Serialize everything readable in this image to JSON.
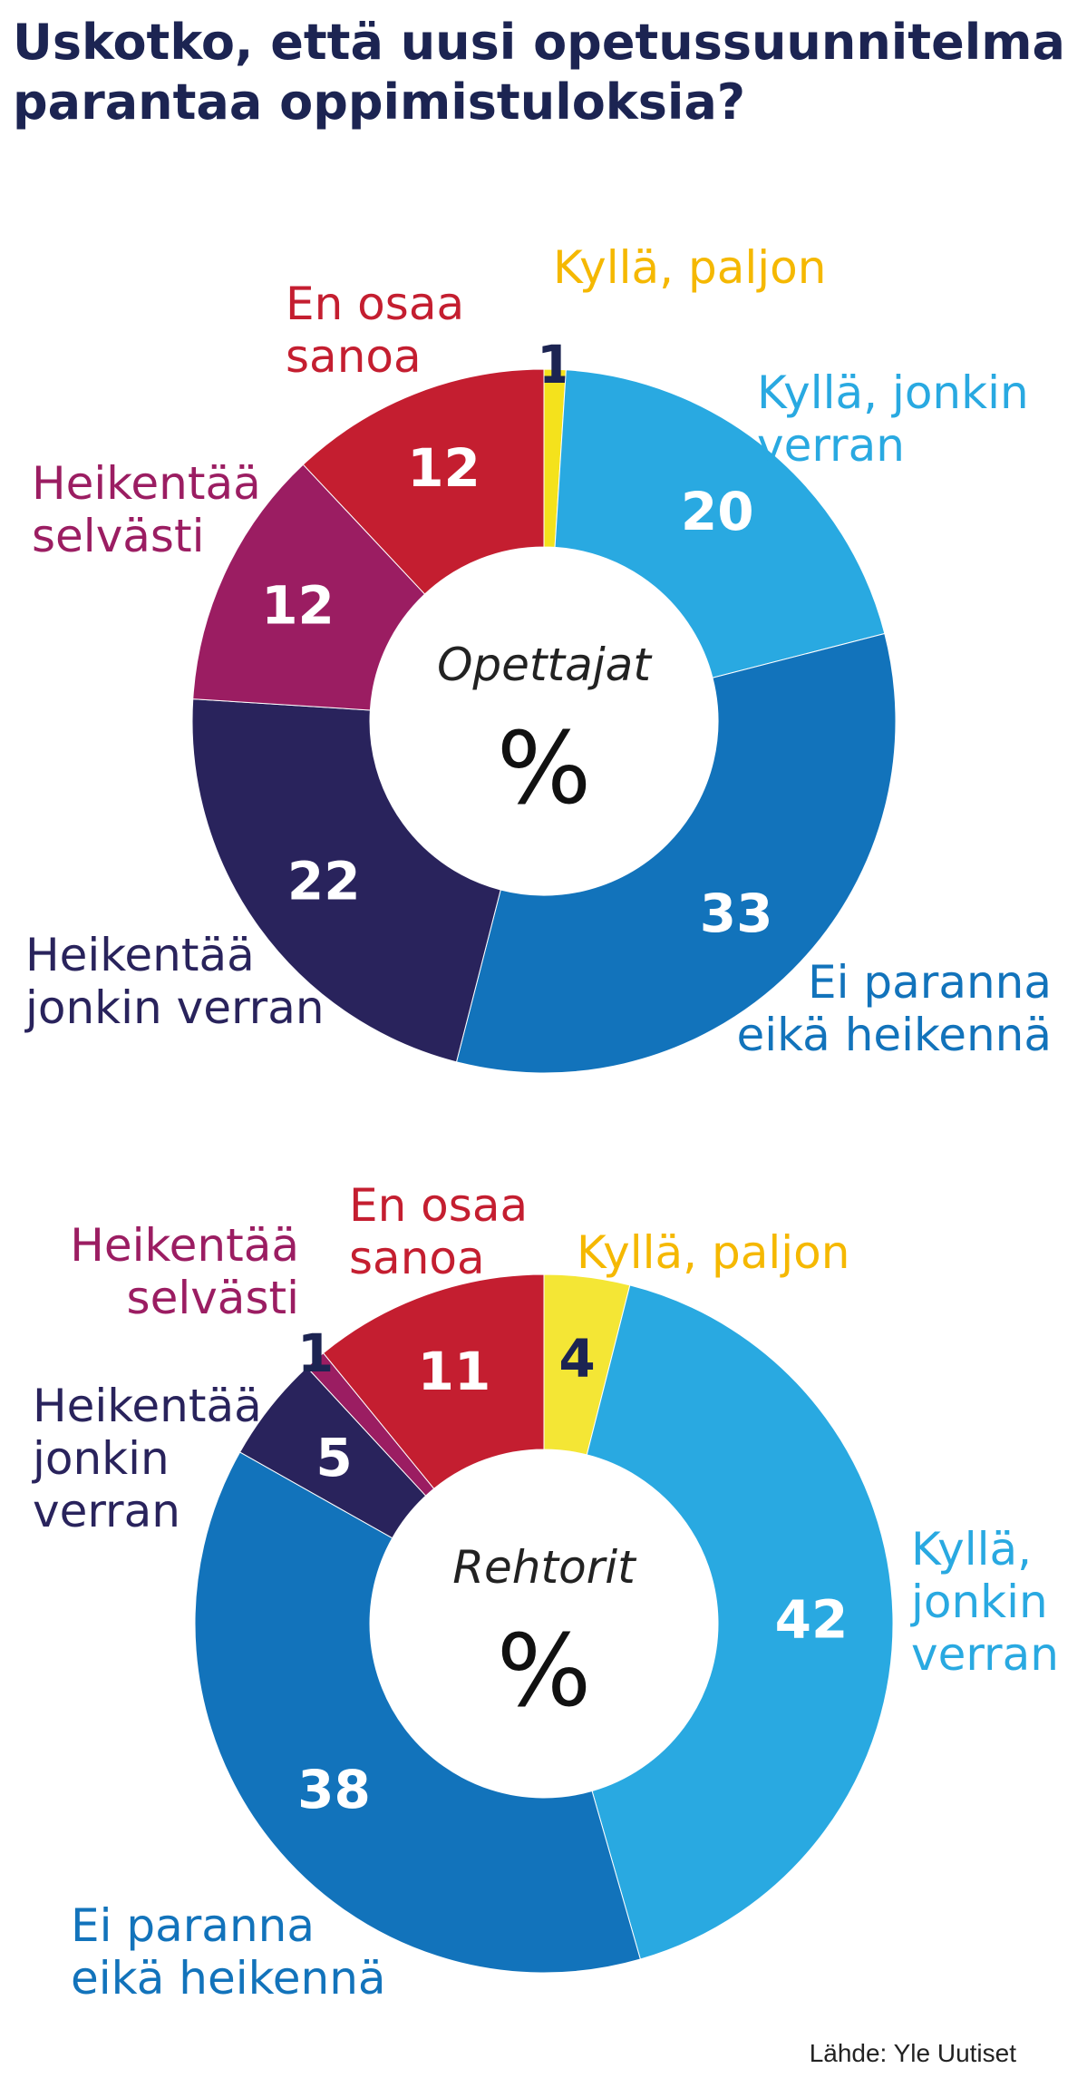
{
  "title_lines": [
    "Uskotko, että uusi opetussuunnitelma",
    "parantaa oppimistuloksia?"
  ],
  "source": "Lähde: Yle Uutiset",
  "chart_data": [
    {
      "type": "pie",
      "center_title": "Opettajat",
      "unit": "%",
      "slices": [
        {
          "label": "Kyllä, paljon",
          "value": 1,
          "color": "#f4e21c",
          "label_color": "#f5b800",
          "value_color": "#1c2452"
        },
        {
          "label": "Kyllä, jonkin verran",
          "value": 20,
          "color": "#29a9e1",
          "label_color": "#29a9e1",
          "value_color": "#ffffff"
        },
        {
          "label": "Ei paranna eikä heikennä",
          "value": 33,
          "color": "#1273bb",
          "label_color": "#1273bb",
          "value_color": "#ffffff"
        },
        {
          "label": "Heikentää jonkin verran",
          "value": 22,
          "color": "#29235c",
          "label_color": "#29235c",
          "value_color": "#ffffff"
        },
        {
          "label": "Heikentää selvästi",
          "value": 12,
          "color": "#9b1d62",
          "label_color": "#9b1d62",
          "value_color": "#ffffff"
        },
        {
          "label": "En osaa sanoa",
          "value": 12,
          "color": "#c41e30",
          "label_color": "#c41e30",
          "value_color": "#ffffff"
        }
      ]
    },
    {
      "type": "pie",
      "center_title": "Rehtorit",
      "unit": "%",
      "slices": [
        {
          "label": "Kyllä, paljon",
          "value": 4,
          "color": "#f4e635",
          "label_color": "#f5b800",
          "value_color": "#1c2452"
        },
        {
          "label": "Kyllä, jonkin verran",
          "value": 42,
          "color": "#29a9e1",
          "label_color": "#29a9e1",
          "value_color": "#ffffff"
        },
        {
          "label": "Ei paranna eikä heikennä",
          "value": 38,
          "color": "#1273bb",
          "label_color": "#1273bb",
          "value_color": "#ffffff"
        },
        {
          "label": "Heikentää jonkin verran",
          "value": 5,
          "color": "#29235c",
          "label_color": "#29235c",
          "value_color": "#ffffff"
        },
        {
          "label": "Heikentää selvästi",
          "value": 1,
          "color": "#9b1d62",
          "label_color": "#9b1d62",
          "value_color": "#1c2452"
        },
        {
          "label": "En osaa sanoa",
          "value": 11,
          "color": "#c41e30",
          "label_color": "#c41e30",
          "value_color": "#ffffff"
        }
      ]
    }
  ]
}
